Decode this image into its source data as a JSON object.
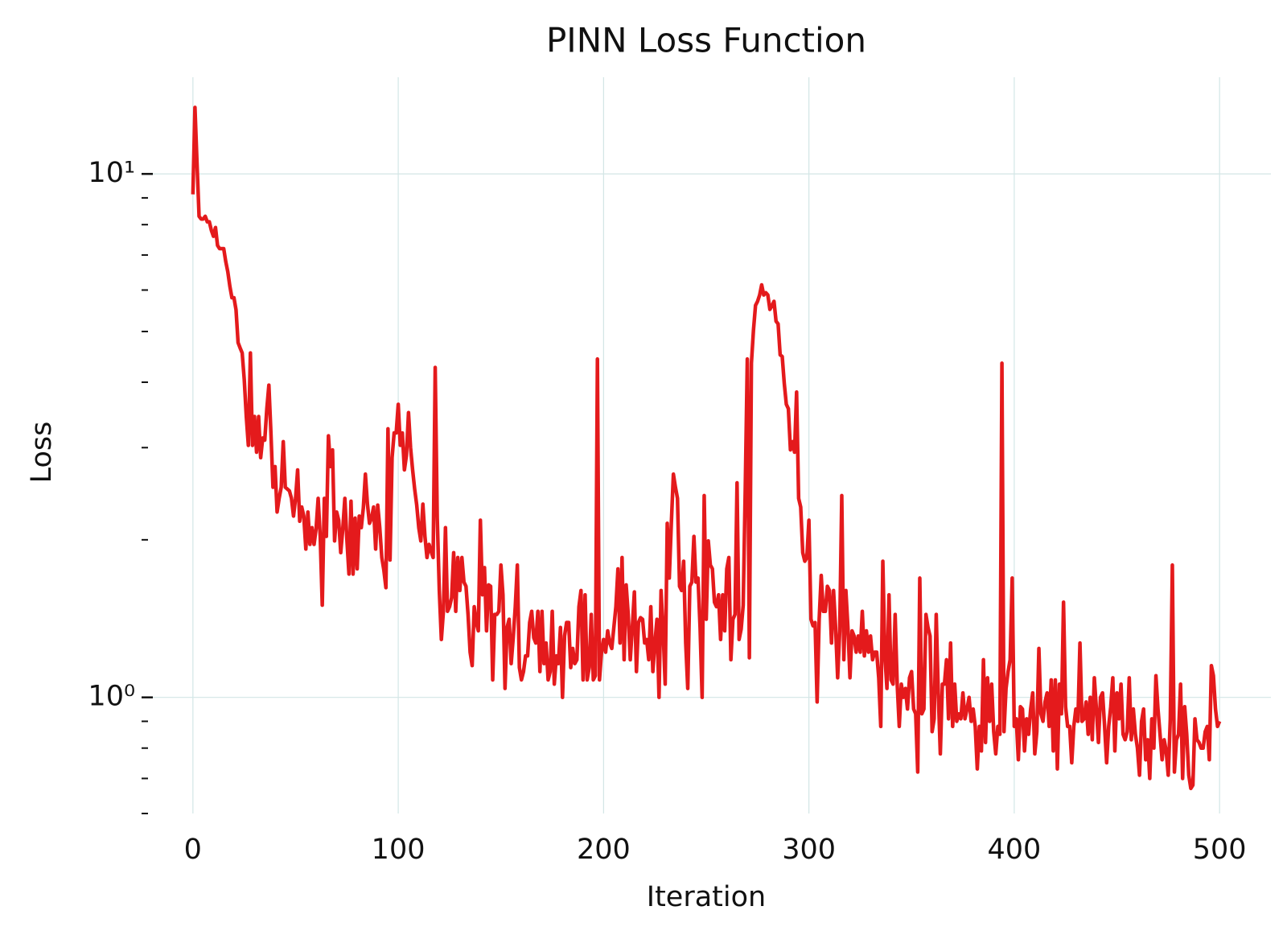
{
  "chart_data": {
    "type": "line",
    "title": "PINN Loss Function",
    "xlabel": "Iteration",
    "ylabel": "Loss",
    "log_y": true,
    "grid": true,
    "xlim": [
      -25,
      525
    ],
    "ylim": [
      0.6,
      15.3
    ],
    "xticks": [
      0,
      100,
      200,
      300,
      400,
      500
    ],
    "yticks": [
      {
        "value": 1,
        "label": "10⁰"
      },
      {
        "value": 10,
        "label": "10¹"
      }
    ],
    "yminorticks": [
      0.6,
      0.7,
      0.8,
      0.9,
      2,
      3,
      4,
      5,
      6,
      7,
      8,
      9
    ],
    "x": [
      0,
      1,
      2,
      3,
      4,
      5,
      6,
      7,
      8,
      9,
      10,
      11,
      12,
      13,
      14,
      15,
      16,
      17,
      18,
      19,
      20,
      21,
      22,
      23,
      24,
      25,
      26,
      27,
      28,
      29,
      30,
      31,
      32,
      33,
      34,
      35,
      36,
      37,
      38,
      39,
      40,
      41,
      42,
      43,
      44,
      45,
      46,
      47,
      48,
      49,
      50,
      51,
      52,
      53,
      54,
      55,
      56,
      57,
      58,
      59,
      60,
      61,
      62,
      63,
      64,
      65,
      66,
      67,
      68,
      69,
      70,
      71,
      72,
      73,
      74,
      75,
      76,
      77,
      78,
      79,
      80,
      81,
      82,
      83,
      84,
      85,
      86,
      87,
      88,
      89,
      90,
      91,
      92,
      93,
      94,
      95,
      96,
      97,
      98,
      99,
      100,
      101,
      102,
      103,
      104,
      105,
      106,
      107,
      108,
      109,
      110,
      111,
      112,
      113,
      114,
      115,
      116,
      117,
      118,
      119,
      120,
      121,
      122,
      123,
      124,
      125,
      126,
      127,
      128,
      129,
      130,
      131,
      132,
      133,
      134,
      135,
      136,
      137,
      138,
      139,
      140,
      141,
      142,
      143,
      144,
      145,
      146,
      147,
      148,
      149,
      150,
      151,
      152,
      153,
      154,
      155,
      156,
      157,
      158,
      159,
      160,
      161,
      162,
      163,
      164,
      165,
      166,
      167,
      168,
      169,
      170,
      171,
      172,
      173,
      174,
      175,
      176,
      177,
      178,
      179,
      180,
      181,
      182,
      183,
      184,
      185,
      186,
      187,
      188,
      189,
      190,
      191,
      192,
      193,
      194,
      195,
      196,
      197,
      198,
      199,
      200,
      201,
      202,
      203,
      204,
      205,
      206,
      207,
      208,
      209,
      210,
      211,
      212,
      213,
      214,
      215,
      216,
      217,
      218,
      219,
      220,
      221,
      222,
      223,
      224,
      225,
      226,
      227,
      228,
      229,
      230,
      231,
      232,
      233,
      234,
      235,
      236,
      237,
      238,
      239,
      240,
      241,
      242,
      243,
      244,
      245,
      246,
      247,
      248,
      249,
      250,
      251,
      252,
      253,
      254,
      255,
      256,
      257,
      258,
      259,
      260,
      261,
      262,
      263,
      264,
      265,
      266,
      267,
      268,
      269,
      270,
      271,
      272,
      273,
      274,
      275,
      276,
      277,
      278,
      279,
      280,
      281,
      282,
      283,
      284,
      285,
      286,
      287,
      288,
      289,
      290,
      291,
      292,
      293,
      294,
      295,
      296,
      297,
      298,
      299,
      300,
      301,
      302,
      303,
      304,
      305,
      306,
      307,
      308,
      309,
      310,
      311,
      312,
      313,
      314,
      315,
      316,
      317,
      318,
      319,
      320,
      321,
      322,
      323,
      324,
      325,
      326,
      327,
      328,
      329,
      330,
      331,
      332,
      333,
      334,
      335,
      336,
      337,
      338,
      339,
      340,
      341,
      342,
      343,
      344,
      345,
      346,
      347,
      348,
      349,
      350,
      351,
      352,
      353,
      354,
      355,
      356,
      357,
      358,
      359,
      360,
      361,
      362,
      363,
      364,
      365,
      366,
      367,
      368,
      369,
      370,
      371,
      372,
      373,
      374,
      375,
      376,
      377,
      378,
      379,
      380,
      381,
      382,
      383,
      384,
      385,
      386,
      387,
      388,
      389,
      390,
      391,
      392,
      393,
      394,
      395,
      396,
      397,
      398,
      399,
      400,
      401,
      402,
      403,
      404,
      405,
      406,
      407,
      408,
      409,
      410,
      411,
      412,
      413,
      414,
      415,
      416,
      417,
      418,
      419,
      420,
      421,
      422,
      423,
      424,
      425,
      426,
      427,
      428,
      429,
      430,
      431,
      432,
      433,
      434,
      435,
      436,
      437,
      438,
      439,
      440,
      441,
      442,
      443,
      444,
      445,
      446,
      447,
      448,
      449,
      450,
      451,
      452,
      453,
      454,
      455,
      456,
      457,
      458,
      459,
      460,
      461,
      462,
      463,
      464,
      465,
      466,
      467,
      468,
      469,
      470,
      471,
      472,
      473,
      474,
      475,
      476,
      477,
      478,
      479,
      480,
      481,
      482,
      483,
      484,
      485,
      486,
      487,
      488,
      489,
      490,
      491,
      492,
      493,
      494,
      495,
      496,
      497,
      498,
      499,
      500
    ],
    "series": [
      {
        "color": "#e41a1c",
        "values": [
          9.14,
          13.4,
          10.5,
          8.3,
          8.2,
          8.2,
          8.3,
          8.1,
          8.1,
          7.8,
          7.6,
          7.9,
          7.3,
          7.2,
          7.2,
          7.2,
          6.8,
          6.5,
          6.1,
          5.8,
          5.8,
          5.5,
          4.76,
          4.65,
          4.55,
          4.05,
          3.44,
          3.03,
          4.55,
          3.03,
          3.44,
          2.94,
          3.44,
          2.87,
          3.13,
          3.1,
          3.56,
          3.95,
          3.2,
          2.52,
          2.76,
          2.26,
          2.4,
          2.52,
          3.08,
          2.52,
          2.5,
          2.48,
          2.4,
          2.22,
          2.4,
          2.72,
          2.17,
          2.31,
          2.22,
          1.92,
          2.26,
          1.96,
          2.11,
          1.96,
          2.1,
          2.4,
          2.03,
          1.5,
          2.4,
          2.03,
          3.16,
          2.76,
          2.97,
          1.99,
          2.26,
          2.18,
          1.89,
          2.1,
          2.4,
          2.0,
          1.72,
          2.37,
          1.72,
          2.2,
          1.76,
          2.22,
          2.11,
          2.3,
          2.67,
          2.34,
          2.15,
          2.2,
          2.31,
          1.92,
          2.33,
          2.11,
          1.85,
          1.75,
          1.62,
          3.26,
          1.83,
          2.87,
          3.2,
          3.2,
          3.63,
          3.03,
          3.2,
          2.72,
          2.9,
          3.5,
          3.0,
          2.72,
          2.5,
          2.33,
          2.11,
          1.99,
          2.34,
          2.03,
          1.85,
          1.96,
          1.9,
          1.85,
          4.27,
          2.2,
          1.6,
          1.29,
          1.46,
          2.11,
          1.46,
          1.49,
          1.55,
          1.89,
          1.46,
          1.85,
          1.6,
          1.85,
          1.66,
          1.63,
          1.44,
          1.22,
          1.15,
          1.49,
          1.39,
          1.34,
          2.18,
          1.57,
          1.77,
          1.34,
          1.64,
          1.63,
          1.08,
          1.44,
          1.44,
          1.46,
          1.79,
          1.57,
          1.04,
          1.36,
          1.41,
          1.16,
          1.3,
          1.49,
          1.79,
          1.14,
          1.08,
          1.12,
          1.2,
          1.2,
          1.39,
          1.46,
          1.3,
          1.27,
          1.46,
          1.12,
          1.46,
          1.16,
          1.27,
          1.08,
          1.12,
          1.46,
          1.06,
          1.2,
          1.16,
          1.36,
          1.0,
          1.31,
          1.39,
          1.39,
          1.14,
          1.24,
          1.16,
          1.18,
          1.49,
          1.6,
          1.08,
          1.57,
          1.08,
          1.14,
          1.44,
          1.08,
          1.1,
          4.43,
          1.08,
          1.22,
          1.29,
          1.22,
          1.34,
          1.27,
          1.24,
          1.36,
          1.49,
          1.76,
          1.27,
          1.85,
          1.18,
          1.64,
          1.44,
          1.18,
          1.36,
          1.59,
          1.12,
          1.39,
          1.42,
          1.41,
          1.27,
          1.29,
          1.18,
          1.49,
          1.12,
          1.27,
          1.41,
          1.0,
          1.6,
          1.34,
          1.06,
          2.15,
          1.69,
          2.15,
          2.67,
          2.52,
          2.4,
          1.63,
          1.6,
          1.82,
          1.27,
          1.04,
          1.63,
          1.66,
          2.03,
          1.66,
          1.69,
          1.36,
          1.0,
          2.43,
          1.41,
          1.99,
          1.79,
          1.76,
          1.52,
          1.49,
          1.57,
          1.29,
          1.57,
          1.34,
          1.76,
          1.85,
          1.18,
          1.41,
          1.44,
          2.57,
          1.29,
          1.35,
          1.5,
          2.5,
          4.43,
          1.19,
          4.35,
          5.03,
          5.61,
          5.71,
          5.87,
          6.14,
          5.87,
          5.93,
          5.87,
          5.51,
          5.6,
          5.71,
          5.23,
          5.17,
          4.51,
          4.48,
          3.98,
          3.63,
          3.56,
          2.97,
          3.08,
          2.94,
          3.83,
          2.4,
          2.31,
          1.89,
          1.82,
          1.85,
          2.18,
          1.41,
          1.37,
          1.39,
          0.98,
          1.41,
          1.71,
          1.46,
          1.46,
          1.63,
          1.6,
          1.27,
          1.6,
          1.36,
          1.09,
          1.34,
          2.43,
          1.18,
          1.6,
          1.36,
          1.09,
          1.34,
          1.31,
          1.22,
          1.31,
          1.22,
          1.46,
          1.2,
          1.34,
          1.22,
          1.31,
          1.18,
          1.22,
          1.22,
          1.09,
          0.88,
          1.82,
          1.2,
          1.04,
          1.57,
          1.08,
          1.06,
          1.44,
          1.06,
          0.88,
          1.06,
          1.0,
          1.04,
          0.95,
          1.09,
          1.12,
          0.95,
          0.93,
          0.72,
          1.69,
          0.93,
          0.95,
          1.44,
          1.36,
          1.31,
          0.86,
          0.91,
          1.44,
          1.02,
          0.78,
          1.06,
          1.06,
          1.18,
          0.91,
          1.27,
          0.88,
          1.06,
          0.9,
          0.93,
          0.91,
          1.02,
          0.91,
          0.95,
          1.0,
          0.9,
          0.95,
          0.88,
          0.73,
          0.88,
          0.79,
          1.18,
          0.82,
          1.09,
          0.9,
          1.06,
          0.86,
          0.78,
          0.88,
          0.85,
          4.35,
          0.86,
          1.04,
          1.12,
          1.18,
          1.69,
          0.88,
          0.91,
          0.76,
          0.96,
          0.95,
          0.79,
          0.91,
          0.85,
          0.95,
          1.02,
          0.78,
          0.86,
          1.24,
          0.93,
          0.9,
          0.98,
          1.02,
          0.88,
          1.08,
          0.79,
          1.08,
          0.73,
          1.06,
          0.93,
          1.52,
          0.96,
          0.88,
          0.88,
          0.75,
          0.88,
          0.95,
          0.9,
          1.27,
          0.9,
          0.91,
          0.98,
          0.85,
          1.0,
          0.83,
          1.09,
          0.95,
          0.82,
          1.0,
          1.02,
          0.88,
          0.75,
          0.88,
          0.96,
          1.09,
          0.79,
          1.02,
          0.91,
          1.06,
          0.85,
          0.83,
          0.86,
          1.09,
          0.83,
          0.95,
          0.85,
          0.8,
          0.71,
          0.9,
          0.95,
          0.76,
          0.83,
          0.7,
          0.91,
          0.8,
          1.1,
          0.95,
          0.85,
          0.76,
          0.83,
          0.79,
          0.71,
          0.91,
          1.79,
          0.72,
          0.83,
          0.85,
          1.06,
          0.7,
          0.96,
          0.85,
          0.71,
          0.67,
          0.68,
          0.91,
          0.83,
          0.82,
          0.8,
          0.8,
          0.86,
          0.88,
          0.76,
          1.15,
          1.1,
          0.95,
          0.88,
          0.9
        ]
      }
    ]
  }
}
